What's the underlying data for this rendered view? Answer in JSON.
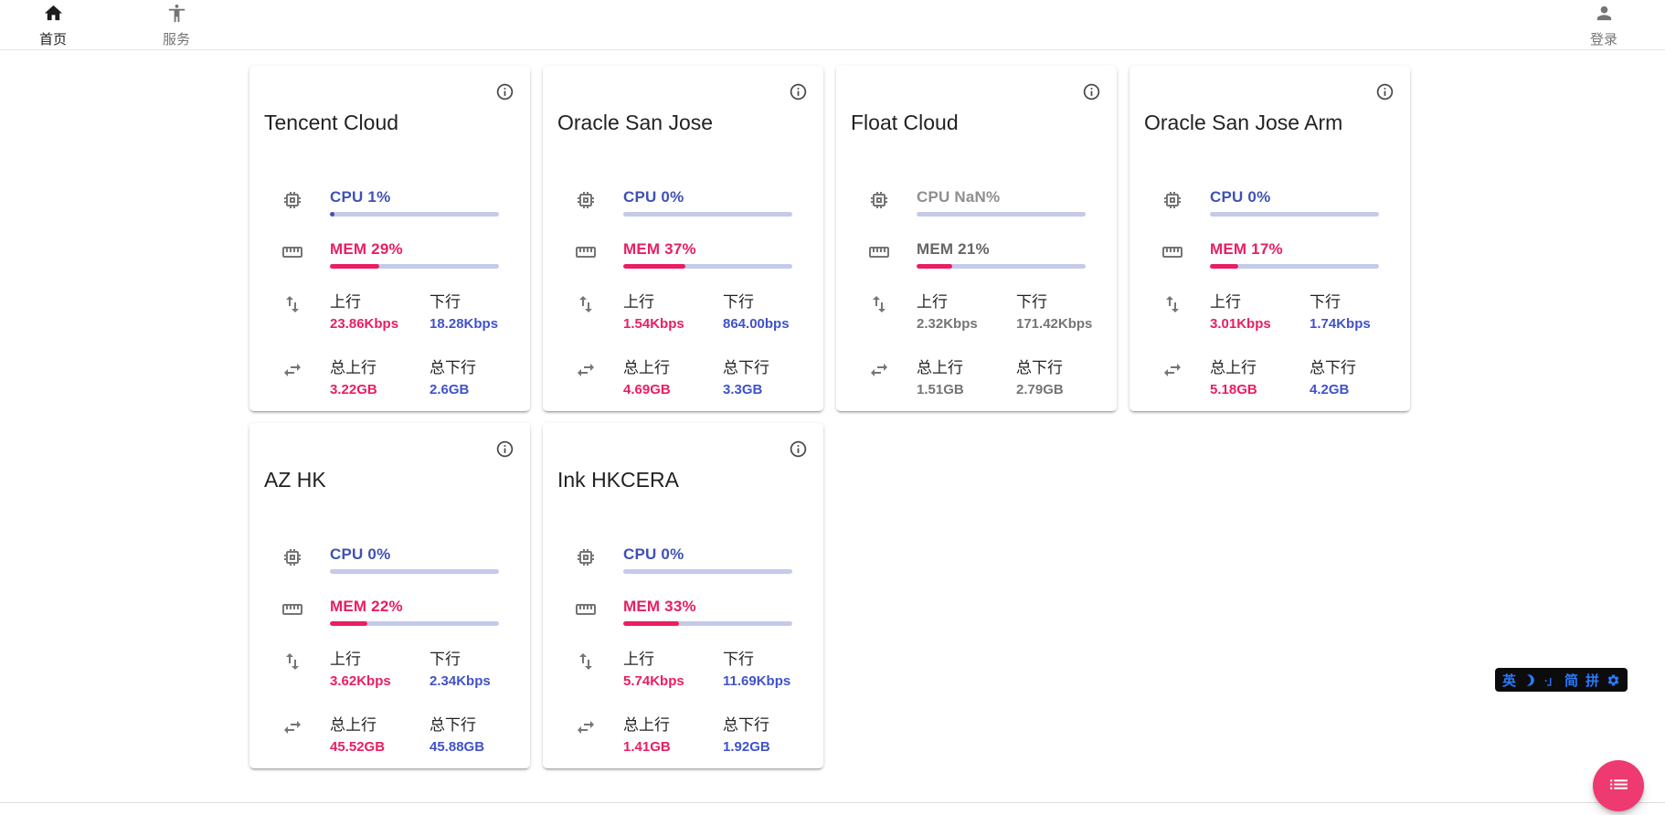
{
  "colors": {
    "indigo": "#3f51b5",
    "blue_value": "#4052cc",
    "pink": "#e91e63",
    "bar_track": "#c5cae9",
    "fab_pink": "#ee3a70",
    "offline_gray": "#757575",
    "ime_blue": "#2979ff"
  },
  "navbar": {
    "items": [
      {
        "label": "首页",
        "icon": "home-icon",
        "active": true
      },
      {
        "label": "服务",
        "icon": "accessibility-icon",
        "active": false
      }
    ],
    "login": {
      "label": "登录",
      "icon": "person-icon"
    }
  },
  "labels": {
    "up": "上行",
    "down": "下行",
    "total_up": "总上行",
    "total_down": "总下行"
  },
  "servers": [
    {
      "name": "Tencent Cloud",
      "cpu_text": "CPU 1%",
      "cpu_percent": 1,
      "mem_text": "MEM 29%",
      "mem_percent": 29,
      "up": "23.86Kbps",
      "down": "18.28Kbps",
      "total_up": "3.22GB",
      "total_down": "2.6GB",
      "offline": false
    },
    {
      "name": "Oracle San Jose",
      "cpu_text": "CPU 0%",
      "cpu_percent": 0,
      "mem_text": "MEM 37%",
      "mem_percent": 37,
      "up": "1.54Kbps",
      "down": "864.00bps",
      "total_up": "4.69GB",
      "total_down": "3.3GB",
      "offline": false
    },
    {
      "name": "Float Cloud",
      "cpu_text": "CPU NaN%",
      "cpu_percent": 0,
      "mem_text": "MEM 21%",
      "mem_percent": 21,
      "up": "2.32Kbps",
      "down": "171.42Kbps",
      "total_up": "1.51GB",
      "total_down": "2.79GB",
      "offline": true
    },
    {
      "name": "Oracle San Jose Arm",
      "cpu_text": "CPU 0%",
      "cpu_percent": 0,
      "mem_text": "MEM 17%",
      "mem_percent": 17,
      "up": "3.01Kbps",
      "down": "1.74Kbps",
      "total_up": "5.18GB",
      "total_down": "4.2GB",
      "offline": false
    },
    {
      "name": "AZ HK",
      "cpu_text": "CPU 0%",
      "cpu_percent": 0,
      "mem_text": "MEM 22%",
      "mem_percent": 22,
      "up": "3.62Kbps",
      "down": "2.34Kbps",
      "total_up": "45.52GB",
      "total_down": "45.88GB",
      "offline": false
    },
    {
      "name": "Ink HKCERA",
      "cpu_text": "CPU 0%",
      "cpu_percent": 0,
      "mem_text": "MEM 33%",
      "mem_percent": 33,
      "up": "5.74Kbps",
      "down": "11.69Kbps",
      "total_up": "1.41GB",
      "total_down": "1.92GB",
      "offline": false
    }
  ],
  "ime_toolbar": {
    "lang": "英",
    "punct": "·」",
    "simplified": "简",
    "pinyin": "拼",
    "icons": [
      "moon-icon",
      "gear-icon"
    ]
  },
  "fab": {
    "icon": "list-icon"
  }
}
